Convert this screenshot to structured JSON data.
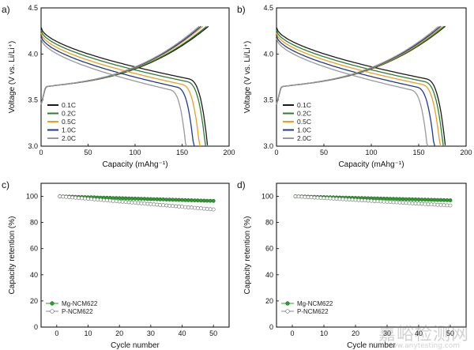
{
  "watermark": {
    "text": "嘉峪检测网",
    "url": "www.anytesting.com"
  },
  "chart_data": [
    {
      "panel": "a)",
      "type": "line",
      "xlabel": "Capacity (mAhg⁻¹)",
      "ylabel": "Voltage (V vs. Li/Li⁺)",
      "xlim": [
        0,
        200
      ],
      "ylim": [
        3.0,
        4.5
      ],
      "xticks": [
        0,
        50,
        100,
        150,
        200
      ],
      "yticks": [
        3.0,
        3.5,
        4.0,
        4.5
      ],
      "legend_position": "bottom-left",
      "series": [
        {
          "name": "0.1C",
          "color": "#1a1a1a",
          "charge_cap": 178,
          "discharge_cap": 177
        },
        {
          "name": "0.2C",
          "color": "#2e7d32",
          "charge_cap": 176,
          "discharge_cap": 175
        },
        {
          "name": "0.5C",
          "color": "#e8a020",
          "charge_cap": 172,
          "discharge_cap": 169
        },
        {
          "name": "1.0C",
          "color": "#1f3a8a",
          "charge_cap": 170,
          "discharge_cap": 163
        },
        {
          "name": "2.0C",
          "color": "#999999",
          "charge_cap": 168,
          "discharge_cap": 155
        }
      ]
    },
    {
      "panel": "b)",
      "type": "line",
      "xlabel": "Capacity (mAhg⁻¹)",
      "ylabel": "Voltage (V vs. Li/Li⁺)",
      "xlim": [
        0,
        200
      ],
      "ylim": [
        3.0,
        4.5
      ],
      "xticks": [
        0,
        50,
        100,
        150,
        200
      ],
      "yticks": [
        3.0,
        3.5,
        4.0,
        4.5
      ],
      "legend_position": "bottom-left",
      "series": [
        {
          "name": "0.1C",
          "color": "#1a1a1a",
          "charge_cap": 178,
          "discharge_cap": 178
        },
        {
          "name": "0.2C",
          "color": "#2e7d32",
          "charge_cap": 177,
          "discharge_cap": 176
        },
        {
          "name": "0.5C",
          "color": "#e8a020",
          "charge_cap": 175,
          "discharge_cap": 173
        },
        {
          "name": "1.0C",
          "color": "#1f3a8a",
          "charge_cap": 173,
          "discharge_cap": 167
        },
        {
          "name": "2.0C",
          "color": "#999999",
          "charge_cap": 171,
          "discharge_cap": 160
        }
      ]
    },
    {
      "panel": "c)",
      "type": "scatter",
      "xlabel": "Cycle number",
      "ylabel": "Capacity retention (%)",
      "xlim": [
        -5,
        55
      ],
      "ylim": [
        0,
        110
      ],
      "xticks": [
        0,
        10,
        20,
        30,
        40,
        50
      ],
      "yticks": [
        0,
        20,
        40,
        60,
        80,
        100
      ],
      "legend_position": "bottom-left",
      "series": [
        {
          "name": "Mg-NCM622",
          "color": "#2e9e2e",
          "marker": "filled",
          "start": 100,
          "end": 96.5
        },
        {
          "name": "P-NCM622",
          "color": "#888888",
          "marker": "open",
          "start": 100,
          "end": 90
        }
      ]
    },
    {
      "panel": "d)",
      "type": "scatter",
      "xlabel": "Cycle number",
      "ylabel": "Capacity retention (%)",
      "xlim": [
        -5,
        55
      ],
      "ylim": [
        0,
        110
      ],
      "xticks": [
        0,
        10,
        20,
        30,
        40,
        50
      ],
      "yticks": [
        0,
        20,
        40,
        60,
        80,
        100
      ],
      "legend_position": "bottom-left",
      "series": [
        {
          "name": "Mg-NCM622",
          "color": "#2e9e2e",
          "marker": "filled",
          "start": 100,
          "end": 97
        },
        {
          "name": "P-NCM622",
          "color": "#888888",
          "marker": "open",
          "start": 100,
          "end": 93
        }
      ]
    }
  ]
}
